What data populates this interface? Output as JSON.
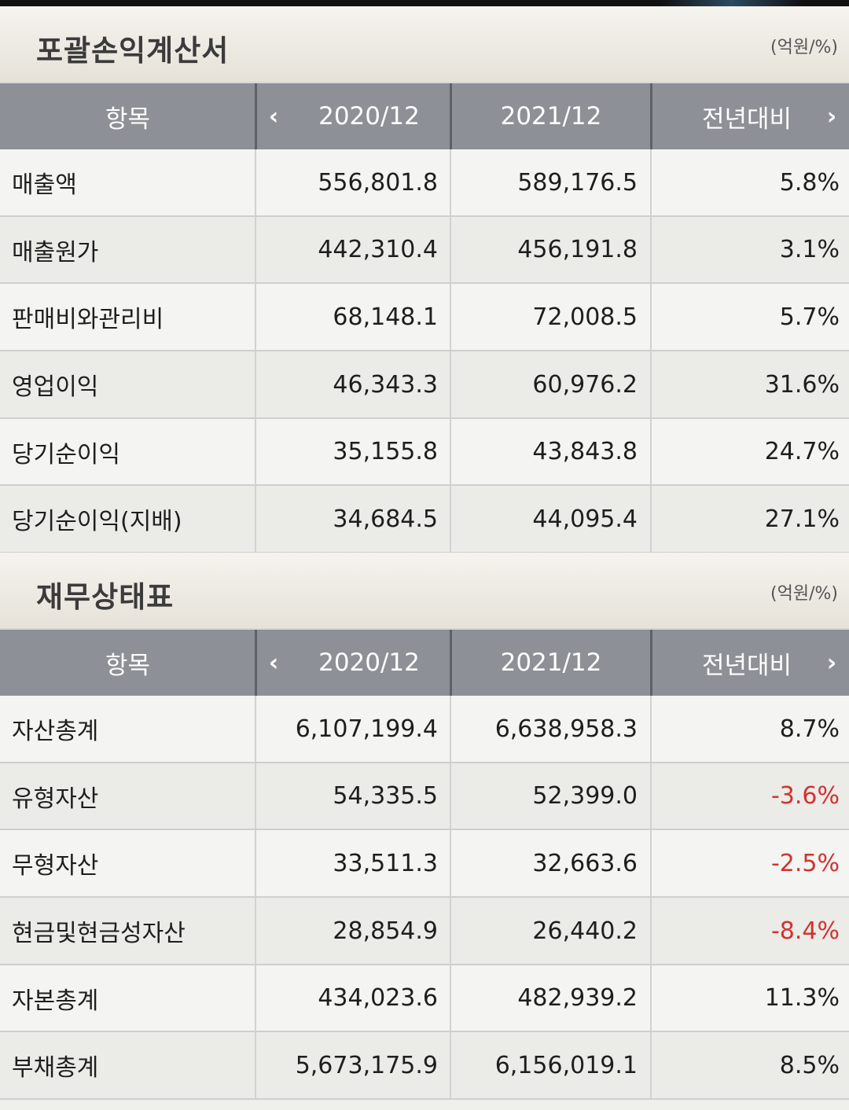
{
  "sections": [
    {
      "title": "포괄손익계산서",
      "unit": "(억원/%)",
      "headers": [
        "항목",
        "2020/12",
        "2021/12",
        "전년대비"
      ],
      "rows": [
        {
          "item": "매출액",
          "y2020": "556,801.8",
          "y2021": "589,176.5",
          "yoy": "5.8%"
        },
        {
          "item": "매출원가",
          "y2020": "442,310.4",
          "y2021": "456,191.8",
          "yoy": "3.1%"
        },
        {
          "item": "판매비와관리비",
          "y2020": "68,148.1",
          "y2021": "72,008.5",
          "yoy": "5.7%"
        },
        {
          "item": "영업이익",
          "y2020": "46,343.3",
          "y2021": "60,976.2",
          "yoy": "31.6%"
        },
        {
          "item": "당기순이익",
          "y2020": "35,155.8",
          "y2021": "43,843.8",
          "yoy": "24.7%"
        },
        {
          "item": "당기순이익(지배)",
          "y2020": "34,684.5",
          "y2021": "44,095.4",
          "yoy": "27.1%"
        }
      ]
    },
    {
      "title": "재무상태표",
      "unit": "(억원/%)",
      "headers": [
        "항목",
        "2020/12",
        "2021/12",
        "전년대비"
      ],
      "rows": [
        {
          "item": "자산총계",
          "y2020": "6,107,199.4",
          "y2021": "6,638,958.3",
          "yoy": "8.7%"
        },
        {
          "item": "유형자산",
          "y2020": "54,335.5",
          "y2021": "52,399.0",
          "yoy": "-3.6%"
        },
        {
          "item": "무형자산",
          "y2020": "33,511.3",
          "y2021": "32,663.6",
          "yoy": "-2.5%"
        },
        {
          "item": "현금및현금성자산",
          "y2020": "28,854.9",
          "y2021": "26,440.2",
          "yoy": "-8.4%"
        },
        {
          "item": "자본총계",
          "y2020": "434,023.6",
          "y2021": "482,939.2",
          "yoy": "11.3%"
        },
        {
          "item": "부채총계",
          "y2020": "5,673,175.9",
          "y2021": "6,156,019.1",
          "yoy": "8.5%"
        }
      ]
    }
  ],
  "icons": {
    "prev": "chevron-left-icon",
    "next": "chevron-right-icon"
  },
  "colors": {
    "header_bg": "#8e9097",
    "negative": "#d2322d"
  }
}
